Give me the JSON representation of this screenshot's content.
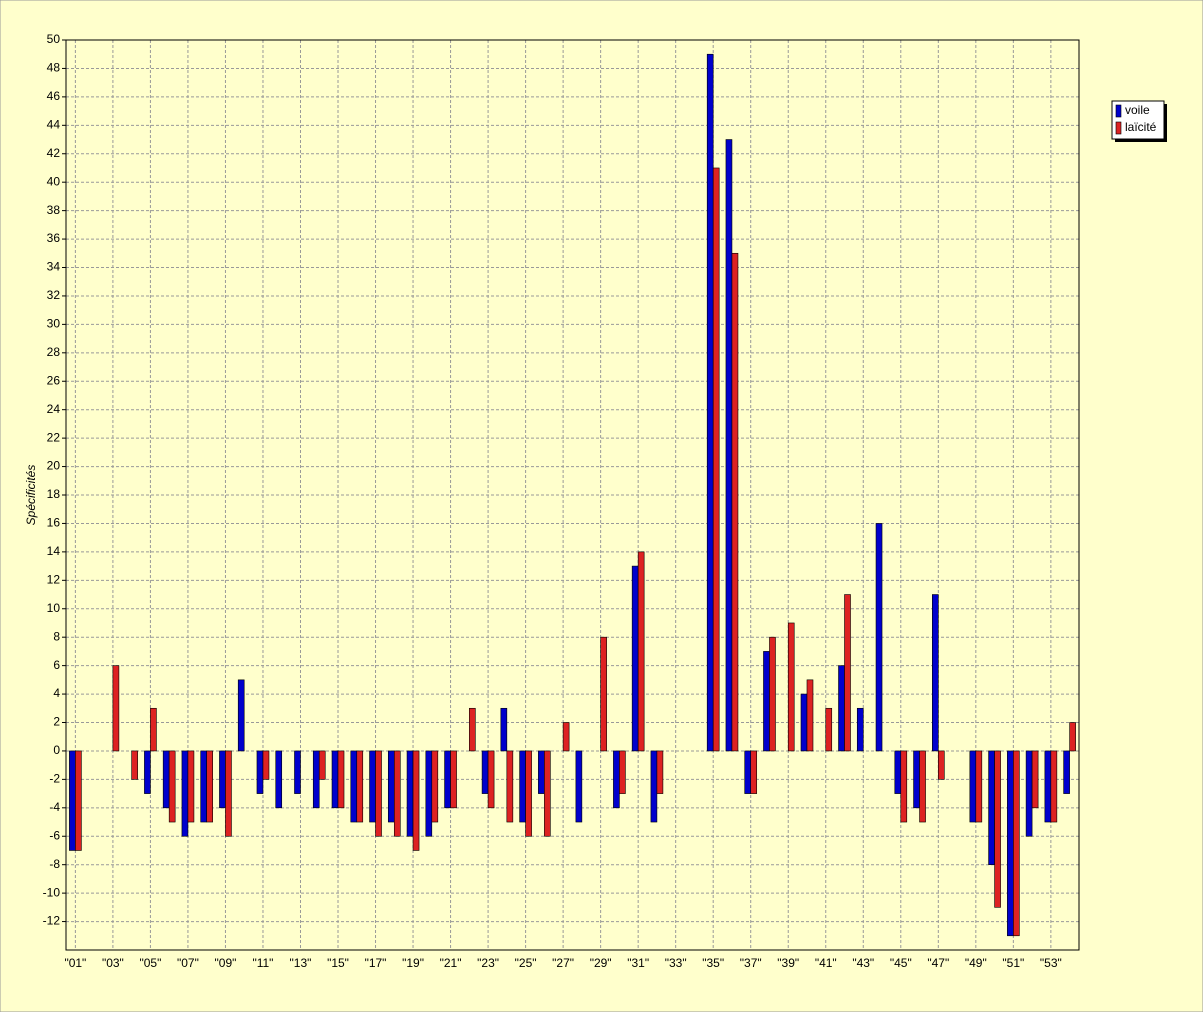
{
  "chart_data": {
    "type": "bar",
    "y_label": "Spécificités",
    "categories": [
      "\"01\"",
      null,
      "\"03\"",
      null,
      "\"05\"",
      null,
      "\"07\"",
      null,
      "\"09\"",
      null,
      "\"11\"",
      null,
      "\"13\"",
      null,
      "\"15\"",
      null,
      "\"17\"",
      null,
      "\"19\"",
      null,
      "\"21\"",
      null,
      "\"23\"",
      null,
      "\"25\"",
      null,
      "\"27\"",
      null,
      "\"29\"",
      null,
      "\"31\"",
      null,
      "\"33\"",
      null,
      "\"35\"",
      null,
      "\"37\"",
      null,
      "\"39\"",
      null,
      "\"41\"",
      null,
      "\"43\"",
      null,
      "\"45\"",
      null,
      "\"47\"",
      null,
      "\"49\"",
      null,
      "\"51\"",
      null,
      "\"53\"",
      null
    ],
    "series": [
      {
        "name": "voile",
        "color": "#0000cc",
        "values": [
          -7,
          0,
          0,
          0,
          -3,
          -4,
          -6,
          -5,
          -4,
          5,
          -3,
          -4,
          -3,
          -4,
          -4,
          -5,
          -5,
          -5,
          -6,
          -6,
          -4,
          0,
          -3,
          3,
          -5,
          -3,
          0,
          -5,
          0,
          -4,
          13,
          -5,
          0,
          0,
          49,
          43,
          -3,
          7,
          0,
          4,
          0,
          6,
          3,
          16,
          -3,
          -4,
          11,
          0,
          -5,
          -8,
          -13,
          -6,
          -5,
          -3
        ]
      },
      {
        "name": "laïcité",
        "color": "#dd2222",
        "values": [
          -7,
          0,
          6,
          -2,
          3,
          -5,
          -5,
          -5,
          -6,
          0,
          -2,
          0,
          0,
          -2,
          -4,
          -5,
          -6,
          -6,
          -7,
          -5,
          -4,
          3,
          -4,
          -5,
          -6,
          -6,
          2,
          0,
          8,
          -3,
          14,
          -3,
          0,
          0,
          41,
          35,
          -3,
          8,
          9,
          5,
          3,
          11,
          0,
          0,
          -5,
          -5,
          -2,
          0,
          -5,
          -11,
          -13,
          -4,
          -5,
          2
        ]
      }
    ],
    "ylim": [
      -14,
      50
    ],
    "yticks": [
      -12,
      -10,
      -8,
      -6,
      -4,
      -2,
      0,
      2,
      4,
      6,
      8,
      10,
      12,
      14,
      16,
      18,
      20,
      22,
      24,
      26,
      28,
      30,
      32,
      34,
      36,
      38,
      40,
      42,
      44,
      46,
      48,
      50
    ],
    "grid": true,
    "legend": "top-right"
  }
}
